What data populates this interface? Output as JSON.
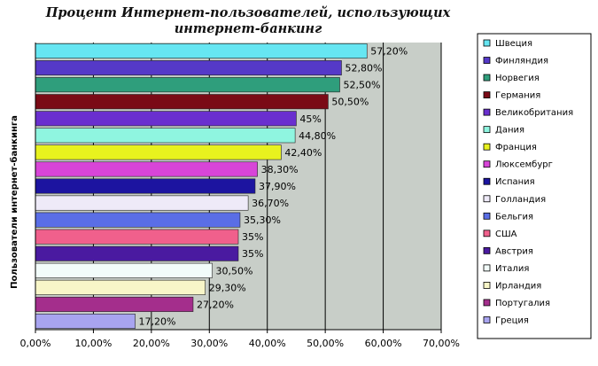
{
  "chart_data": {
    "type": "bar",
    "orientation": "horizontal",
    "title_line1": "Процент Интернет-пользователей, использующих",
    "title_line2": "интернет-банкинг",
    "xlabel": "",
    "ylabel": "Пользователи интернет-банкинга",
    "xlim": [
      0,
      70
    ],
    "x_ticks": [
      "0,00%",
      "10,00%",
      "20,00%",
      "30,00%",
      "40,00%",
      "50,00%",
      "60,00%",
      "70,00%"
    ],
    "grid": "vertical",
    "legend_position": "right",
    "series": [
      {
        "name": "Швеция",
        "value": 57.2,
        "label": "57,20%",
        "color": "#66e6f2"
      },
      {
        "name": "Финляндия",
        "value": 52.8,
        "label": "52,80%",
        "color": "#5539c8"
      },
      {
        "name": "Норвегия",
        "value": 52.5,
        "label": "52,50%",
        "color": "#2f9e7c"
      },
      {
        "name": "Германия",
        "value": 50.5,
        "label": "50,50%",
        "color": "#7a0a16"
      },
      {
        "name": "Великобритания",
        "value": 45,
        "label": "45%",
        "color": "#6a2fcf"
      },
      {
        "name": "Дания",
        "value": 44.8,
        "label": "44,80%",
        "color": "#8ff5e0"
      },
      {
        "name": "Франция",
        "value": 42.4,
        "label": "42,40%",
        "color": "#e8f21e"
      },
      {
        "name": "Люксембург",
        "value": 38.3,
        "label": "38,30%",
        "color": "#d845d8"
      },
      {
        "name": "Испания",
        "value": 37.9,
        "label": "37,90%",
        "color": "#1c14a0"
      },
      {
        "name": "Голландия",
        "value": 36.7,
        "label": "36,70%",
        "color": "#eeeaf8"
      },
      {
        "name": "Бельгия",
        "value": 35.3,
        "label": "35,30%",
        "color": "#5a6ee6"
      },
      {
        "name": "США",
        "value": 35,
        "label": "35%",
        "color": "#f0608c"
      },
      {
        "name": "Австрия",
        "value": 35,
        "label": "35%",
        "color": "#4a1aa0"
      },
      {
        "name": "Италия",
        "value": 30.5,
        "label": "30,50%",
        "color": "#f2fcfa"
      },
      {
        "name": "Ирландия",
        "value": 29.3,
        "label": "29,30%",
        "color": "#f8f6c8"
      },
      {
        "name": "Португалия",
        "value": 27.2,
        "label": "27,20%",
        "color": "#a42e8c"
      },
      {
        "name": "Греция",
        "value": 17.2,
        "label": "17,20%",
        "color": "#a8a4f0"
      }
    ]
  },
  "colors": {
    "plot_background": "#c8cec8",
    "gridline": "#000000",
    "legend_background": "#ffffff"
  }
}
